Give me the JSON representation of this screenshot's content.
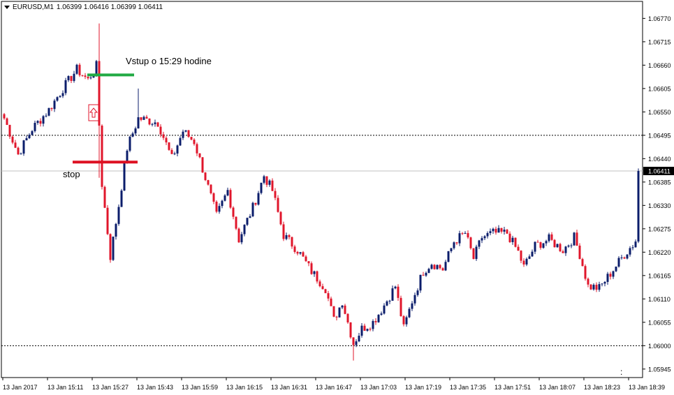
{
  "header": {
    "symbol_tf": "EURUSD,M1",
    "prices": "1.06399 1.06416 1.06399 1.06411"
  },
  "annotations": {
    "entry_label": "Vstup o 15:29 hodine",
    "stop_label": "stop",
    "corner_mark": ":"
  },
  "colors": {
    "bull": "#0b1d6b",
    "bear": "#e0162b",
    "entry_line": "#22aa44",
    "stop_line": "#dd1122",
    "grid_line": "#000000",
    "current_price_line": "#c0c0c0"
  },
  "chart_data": {
    "type": "candlestick",
    "symbol": "EURUSD",
    "timeframe": "M1",
    "ylim": [
      1.05925,
      1.0681
    ],
    "y_ticks": [
      "1.06770",
      "1.06715",
      "1.06660",
      "1.06605",
      "1.06550",
      "1.06495",
      "1.06440",
      "1.06385",
      "1.06330",
      "1.06275",
      "1.06220",
      "1.06165",
      "1.06110",
      "1.06055",
      "1.06000",
      "1.05945"
    ],
    "x_ticks": [
      "13 Jan 2017",
      "13 Jan 15:11",
      "13 Jan 15:27",
      "13 Jan 15:43",
      "13 Jan 15:59",
      "13 Jan 16:15",
      "13 Jan 16:31",
      "13 Jan 16:47",
      "13 Jan 17:03",
      "13 Jan 17:19",
      "13 Jan 17:35",
      "13 Jan 17:51",
      "13 Jan 18:07",
      "13 Jan 18:23",
      "13 Jan 18:39"
    ],
    "current_price": "1.06411",
    "horizontal_levels": [
      1.06495,
      1.06
    ],
    "entry_level": 1.06637,
    "stop_level": 1.06432,
    "anchors": [
      {
        "i": 0,
        "c": 1.06535
      },
      {
        "i": 5,
        "c": 1.0645
      },
      {
        "i": 10,
        "c": 1.0651
      },
      {
        "i": 16,
        "c": 1.06555
      },
      {
        "i": 21,
        "c": 1.06605
      },
      {
        "i": 26,
        "c": 1.0665
      },
      {
        "i": 30,
        "c": 1.06625
      },
      {
        "i": 33,
        "c": 1.06658
      },
      {
        "i": 35,
        "c": 1.0638
      },
      {
        "i": 38,
        "c": 1.0621
      },
      {
        "i": 41,
        "c": 1.0633
      },
      {
        "i": 44,
        "c": 1.06465
      },
      {
        "i": 48,
        "c": 1.06535
      },
      {
        "i": 55,
        "c": 1.06525
      },
      {
        "i": 60,
        "c": 1.0644
      },
      {
        "i": 64,
        "c": 1.06505
      },
      {
        "i": 68,
        "c": 1.0648
      },
      {
        "i": 72,
        "c": 1.06395
      },
      {
        "i": 76,
        "c": 1.06305
      },
      {
        "i": 80,
        "c": 1.06365
      },
      {
        "i": 84,
        "c": 1.0625
      },
      {
        "i": 89,
        "c": 1.06325
      },
      {
        "i": 93,
        "c": 1.064
      },
      {
        "i": 96,
        "c": 1.06365
      },
      {
        "i": 100,
        "c": 1.0626
      },
      {
        "i": 105,
        "c": 1.06225
      },
      {
        "i": 110,
        "c": 1.06175
      },
      {
        "i": 115,
        "c": 1.06135
      },
      {
        "i": 118,
        "c": 1.0606
      },
      {
        "i": 121,
        "c": 1.06105
      },
      {
        "i": 125,
        "c": 1.06005
      },
      {
        "i": 128,
        "c": 1.0604
      },
      {
        "i": 132,
        "c": 1.06055
      },
      {
        "i": 136,
        "c": 1.06095
      },
      {
        "i": 140,
        "c": 1.0614
      },
      {
        "i": 143,
        "c": 1.0604
      },
      {
        "i": 146,
        "c": 1.06105
      },
      {
        "i": 150,
        "c": 1.06175
      },
      {
        "i": 153,
        "c": 1.06195
      },
      {
        "i": 157,
        "c": 1.0618
      },
      {
        "i": 161,
        "c": 1.06245
      },
      {
        "i": 165,
        "c": 1.06265
      },
      {
        "i": 168,
        "c": 1.06205
      },
      {
        "i": 171,
        "c": 1.06255
      },
      {
        "i": 175,
        "c": 1.06265
      },
      {
        "i": 180,
        "c": 1.06265
      },
      {
        "i": 184,
        "c": 1.0622
      },
      {
        "i": 186,
        "c": 1.06185
      },
      {
        "i": 190,
        "c": 1.06235
      },
      {
        "i": 195,
        "c": 1.0625
      },
      {
        "i": 200,
        "c": 1.06225
      },
      {
        "i": 204,
        "c": 1.06255
      },
      {
        "i": 206,
        "c": 1.06215
      },
      {
        "i": 209,
        "c": 1.0614
      },
      {
        "i": 213,
        "c": 1.06135
      },
      {
        "i": 217,
        "c": 1.0617
      },
      {
        "i": 222,
        "c": 1.06215
      },
      {
        "i": 226,
        "c": 1.06245
      }
    ]
  }
}
